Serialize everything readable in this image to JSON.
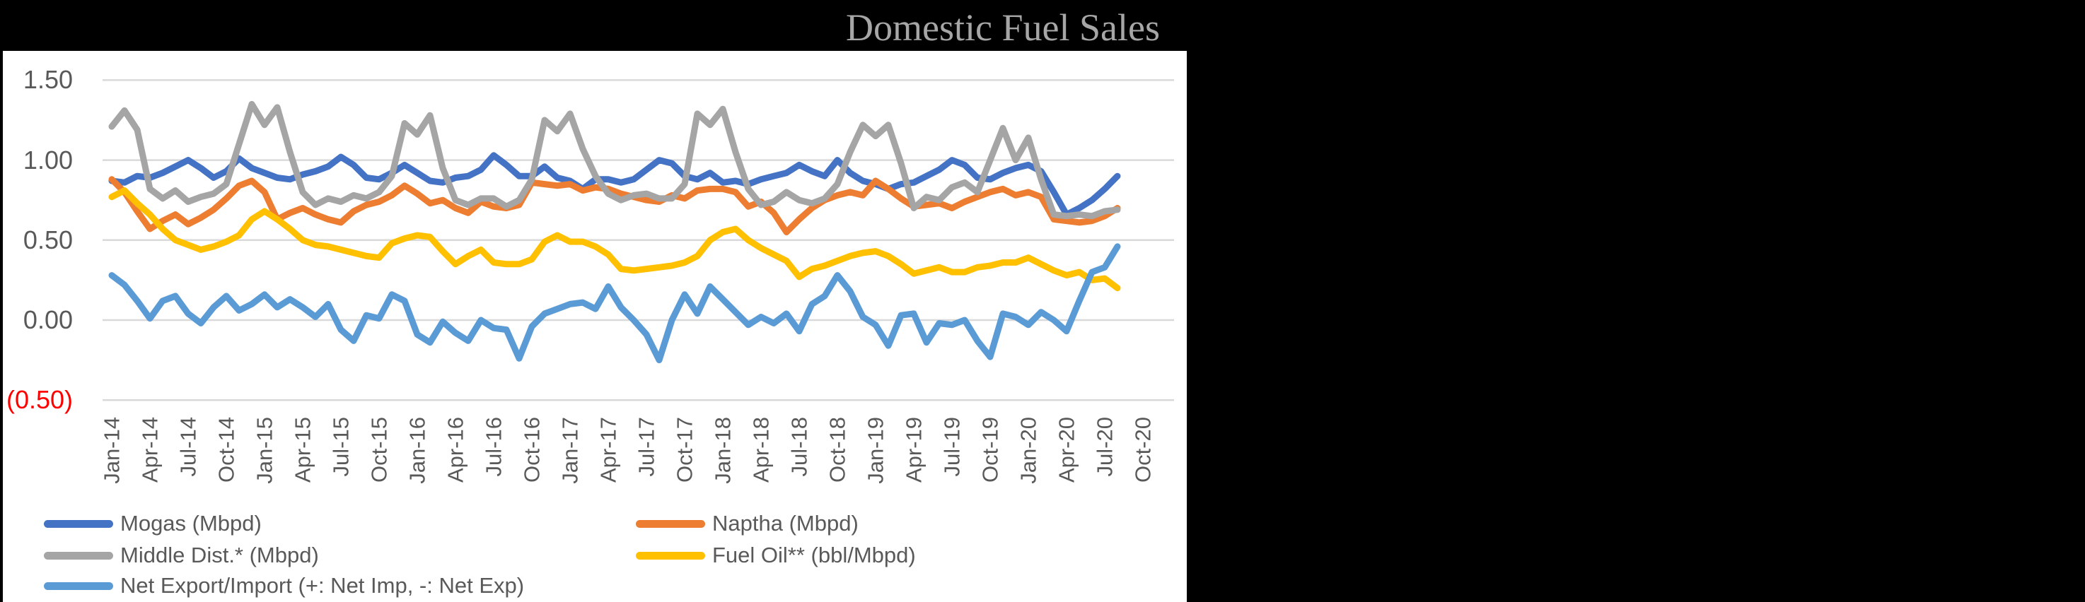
{
  "canvas": {
    "background": "#000000",
    "panel_background": "#FFFFFF"
  },
  "title": {
    "text": "Domestic Fuel Sales",
    "color": "#A6A6A6"
  },
  "axis": {
    "tick_color": "#595959",
    "negative_tick_color": "#FF0000",
    "gridline_color": "#D9D9D9"
  },
  "chart_data": {
    "type": "line",
    "title": "Domestic Fuel Sales",
    "xlabel": "",
    "ylabel": "",
    "ylim": [
      -0.5,
      1.5
    ],
    "grid": true,
    "legend_position": "bottom",
    "x_tick_interval_months": 3,
    "y_ticks": [
      {
        "label": "1.50",
        "value": 1.5
      },
      {
        "label": "1.00",
        "value": 1.0
      },
      {
        "label": "0.50",
        "value": 0.5
      },
      {
        "label": "0.00",
        "value": 0.0
      },
      {
        "label": "(0.50)",
        "value": -0.5,
        "color": "#FF0000"
      }
    ],
    "x_tick_labels": [
      "Jan-14",
      "Apr-14",
      "Jul-14",
      "Oct-14",
      "Jan-15",
      "Apr-15",
      "Jul-15",
      "Oct-15",
      "Jan-16",
      "Apr-16",
      "Jul-16",
      "Oct-16",
      "Jan-17",
      "Apr-17",
      "Jul-17",
      "Oct-17",
      "Jan-18",
      "Apr-18",
      "Jul-18",
      "Oct-18",
      "Jan-19",
      "Apr-19",
      "Jul-19",
      "Oct-19",
      "Jan-20",
      "Apr-20",
      "Jul-20",
      "Oct-20"
    ],
    "categories": [
      "Jan-14",
      "Feb-14",
      "Mar-14",
      "Apr-14",
      "May-14",
      "Jun-14",
      "Jul-14",
      "Aug-14",
      "Sep-14",
      "Oct-14",
      "Nov-14",
      "Dec-14",
      "Jan-15",
      "Feb-15",
      "Mar-15",
      "Apr-15",
      "May-15",
      "Jun-15",
      "Jul-15",
      "Aug-15",
      "Sep-15",
      "Oct-15",
      "Nov-15",
      "Dec-15",
      "Jan-16",
      "Feb-16",
      "Mar-16",
      "Apr-16",
      "May-16",
      "Jun-16",
      "Jul-16",
      "Aug-16",
      "Sep-16",
      "Oct-16",
      "Nov-16",
      "Dec-16",
      "Jan-17",
      "Feb-17",
      "Mar-17",
      "Apr-17",
      "May-17",
      "Jun-17",
      "Jul-17",
      "Aug-17",
      "Sep-17",
      "Oct-17",
      "Nov-17",
      "Dec-17",
      "Jan-18",
      "Feb-18",
      "Mar-18",
      "Apr-18",
      "May-18",
      "Jun-18",
      "Jul-18",
      "Aug-18",
      "Sep-18",
      "Oct-18",
      "Nov-18",
      "Dec-18",
      "Jan-19",
      "Feb-19",
      "Mar-19",
      "Apr-19",
      "May-19",
      "Jun-19",
      "Jul-19",
      "Aug-19",
      "Sep-19",
      "Oct-19",
      "Nov-19",
      "Dec-19",
      "Jan-20",
      "Feb-20",
      "Mar-20",
      "Apr-20",
      "May-20",
      "Jun-20",
      "Jul-20",
      "Aug-20"
    ],
    "series": [
      {
        "name": "Mogas (Mbpd)",
        "color": "#4472C4",
        "values": [
          0.87,
          0.86,
          0.9,
          0.89,
          0.92,
          0.96,
          1.0,
          0.95,
          0.89,
          0.93,
          1.01,
          0.95,
          0.92,
          0.89,
          0.88,
          0.91,
          0.93,
          0.96,
          1.02,
          0.97,
          0.89,
          0.88,
          0.92,
          0.97,
          0.92,
          0.87,
          0.86,
          0.89,
          0.9,
          0.94,
          1.03,
          0.97,
          0.9,
          0.9,
          0.96,
          0.89,
          0.87,
          0.82,
          0.88,
          0.88,
          0.86,
          0.88,
          0.94,
          1.0,
          0.98,
          0.9,
          0.88,
          0.92,
          0.86,
          0.87,
          0.85,
          0.88,
          0.9,
          0.92,
          0.97,
          0.93,
          0.9,
          1.0,
          0.92,
          0.87,
          0.85,
          0.82,
          0.85,
          0.86,
          0.9,
          0.94,
          1.0,
          0.97,
          0.89,
          0.88,
          0.92,
          0.95,
          0.97,
          0.93,
          0.8,
          0.66,
          0.7,
          0.75,
          0.82,
          0.9
        ]
      },
      {
        "name": "Naptha (Mbpd)",
        "color": "#ED7D31",
        "values": [
          0.88,
          0.8,
          0.68,
          0.57,
          0.62,
          0.66,
          0.6,
          0.64,
          0.69,
          0.76,
          0.84,
          0.87,
          0.8,
          0.63,
          0.67,
          0.7,
          0.66,
          0.63,
          0.61,
          0.68,
          0.72,
          0.74,
          0.78,
          0.84,
          0.79,
          0.73,
          0.75,
          0.7,
          0.67,
          0.74,
          0.71,
          0.7,
          0.72,
          0.86,
          0.85,
          0.84,
          0.85,
          0.81,
          0.83,
          0.82,
          0.79,
          0.77,
          0.75,
          0.74,
          0.78,
          0.76,
          0.81,
          0.82,
          0.82,
          0.8,
          0.71,
          0.74,
          0.67,
          0.55,
          0.63,
          0.7,
          0.75,
          0.78,
          0.8,
          0.78,
          0.87,
          0.82,
          0.76,
          0.71,
          0.72,
          0.73,
          0.7,
          0.74,
          0.77,
          0.8,
          0.82,
          0.78,
          0.8,
          0.77,
          0.63,
          0.62,
          0.61,
          0.62,
          0.65,
          0.7
        ]
      },
      {
        "name": "Middle Dist.* (Mbpd)",
        "color": "#A5A5A5",
        "values": [
          1.21,
          1.31,
          1.19,
          0.82,
          0.76,
          0.81,
          0.74,
          0.77,
          0.79,
          0.85,
          1.1,
          1.35,
          1.22,
          1.33,
          1.05,
          0.8,
          0.72,
          0.76,
          0.74,
          0.78,
          0.76,
          0.8,
          0.9,
          1.23,
          1.16,
          1.28,
          0.95,
          0.75,
          0.72,
          0.76,
          0.76,
          0.71,
          0.75,
          0.88,
          1.25,
          1.18,
          1.29,
          1.07,
          0.9,
          0.79,
          0.75,
          0.78,
          0.79,
          0.76,
          0.76,
          0.85,
          1.29,
          1.22,
          1.32,
          1.05,
          0.82,
          0.72,
          0.74,
          0.8,
          0.75,
          0.73,
          0.76,
          0.85,
          1.05,
          1.22,
          1.15,
          1.22,
          0.98,
          0.7,
          0.77,
          0.75,
          0.83,
          0.86,
          0.8,
          1.0,
          1.2,
          1.0,
          1.14,
          0.88,
          0.66,
          0.65,
          0.66,
          0.65,
          0.68,
          0.69
        ]
      },
      {
        "name": "Fuel Oil** (bbl/Mbpd)",
        "color": "#FFC000",
        "values": [
          0.77,
          0.81,
          0.73,
          0.66,
          0.57,
          0.5,
          0.47,
          0.44,
          0.46,
          0.49,
          0.53,
          0.63,
          0.68,
          0.63,
          0.57,
          0.5,
          0.47,
          0.46,
          0.44,
          0.42,
          0.4,
          0.39,
          0.48,
          0.51,
          0.53,
          0.52,
          0.43,
          0.35,
          0.4,
          0.44,
          0.36,
          0.35,
          0.35,
          0.38,
          0.49,
          0.53,
          0.49,
          0.49,
          0.46,
          0.41,
          0.32,
          0.31,
          0.32,
          0.33,
          0.34,
          0.36,
          0.4,
          0.5,
          0.55,
          0.57,
          0.5,
          0.45,
          0.41,
          0.37,
          0.27,
          0.32,
          0.34,
          0.37,
          0.4,
          0.42,
          0.43,
          0.4,
          0.35,
          0.29,
          0.31,
          0.33,
          0.3,
          0.3,
          0.33,
          0.34,
          0.36,
          0.36,
          0.39,
          0.35,
          0.31,
          0.28,
          0.3,
          0.25,
          0.26,
          0.2
        ]
      },
      {
        "name": "Net Export/Import (+: Net Imp, -: Net Exp)",
        "color": "#5B9BD5",
        "values": [
          0.28,
          0.22,
          0.12,
          0.01,
          0.12,
          0.15,
          0.04,
          -0.02,
          0.08,
          0.15,
          0.06,
          0.1,
          0.16,
          0.08,
          0.13,
          0.08,
          0.02,
          0.1,
          -0.06,
          -0.13,
          0.03,
          0.01,
          0.16,
          0.12,
          -0.09,
          -0.14,
          -0.01,
          -0.08,
          -0.13,
          0.0,
          -0.05,
          -0.06,
          -0.24,
          -0.04,
          0.04,
          0.07,
          0.1,
          0.11,
          0.07,
          0.21,
          0.08,
          0.0,
          -0.09,
          -0.25,
          0.0,
          0.16,
          0.04,
          0.21,
          0.13,
          0.05,
          -0.03,
          0.02,
          -0.02,
          0.04,
          -0.07,
          0.1,
          0.15,
          0.28,
          0.18,
          0.02,
          -0.03,
          -0.16,
          0.03,
          0.04,
          -0.14,
          -0.02,
          -0.03,
          0.0,
          -0.13,
          -0.23,
          0.04,
          0.02,
          -0.03,
          0.05,
          0.0,
          -0.07,
          0.12,
          0.3,
          0.33,
          0.46
        ]
      }
    ],
    "legend_columns": {
      "left": [
        0,
        2,
        4
      ],
      "right": [
        1,
        3
      ]
    }
  }
}
